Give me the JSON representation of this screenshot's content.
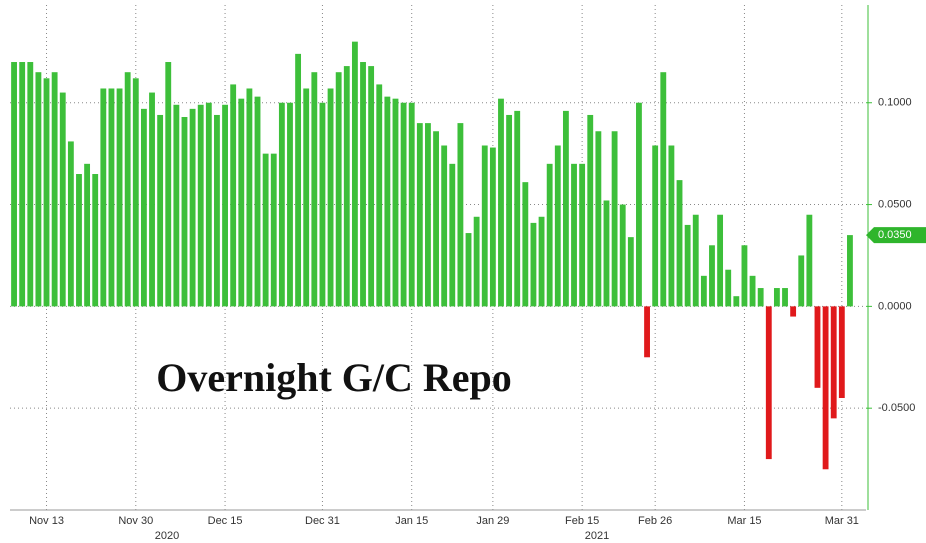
{
  "chart_data": {
    "type": "bar",
    "annotation": "Overnight G/C Repo",
    "categories": [
      null,
      null,
      null,
      null,
      "Nov 13",
      null,
      null,
      null,
      null,
      null,
      null,
      null,
      null,
      null,
      null,
      "Nov 30",
      null,
      null,
      null,
      null,
      null,
      null,
      null,
      null,
      null,
      null,
      "Dec 15",
      null,
      null,
      null,
      null,
      null,
      null,
      null,
      null,
      null,
      null,
      null,
      "Dec 31",
      null,
      null,
      null,
      null,
      null,
      null,
      null,
      null,
      null,
      null,
      "Jan 15",
      null,
      null,
      null,
      null,
      null,
      null,
      null,
      null,
      null,
      "Jan 29",
      null,
      null,
      null,
      null,
      null,
      null,
      null,
      null,
      null,
      null,
      "Feb 15",
      null,
      null,
      null,
      null,
      null,
      null,
      null,
      null,
      "Feb 26",
      null,
      null,
      null,
      null,
      null,
      null,
      null,
      null,
      null,
      null,
      "Mar 15",
      null,
      null,
      null,
      null,
      null,
      null,
      null,
      null,
      null,
      null,
      null,
      "Mar 31",
      null
    ],
    "values": [
      0.12,
      0.12,
      0.12,
      0.115,
      0.112,
      0.115,
      0.105,
      0.081,
      0.065,
      0.07,
      0.065,
      0.107,
      0.107,
      0.107,
      0.115,
      0.112,
      0.097,
      0.105,
      0.094,
      0.12,
      0.099,
      0.093,
      0.097,
      0.099,
      0.1,
      0.094,
      0.099,
      0.109,
      0.102,
      0.107,
      0.103,
      0.075,
      0.075,
      0.1,
      0.1,
      0.124,
      0.107,
      0.115,
      0.1,
      0.107,
      0.115,
      0.118,
      0.13,
      0.12,
      0.118,
      0.109,
      0.103,
      0.102,
      0.1,
      0.1,
      0.09,
      0.09,
      0.086,
      0.079,
      0.07,
      0.09,
      0.036,
      0.044,
      0.079,
      0.078,
      0.102,
      0.094,
      0.096,
      0.061,
      0.041,
      0.044,
      0.07,
      0.079,
      0.096,
      0.07,
      0.07,
      0.094,
      0.086,
      0.052,
      0.086,
      0.05,
      0.034,
      0.1,
      -0.025,
      0.079,
      0.115,
      0.079,
      0.062,
      0.04,
      0.045,
      0.015,
      0.03,
      0.045,
      0.018,
      0.005,
      0.03,
      0.015,
      0.009,
      -0.075,
      0.009,
      0.009,
      -0.005,
      0.025,
      0.045,
      -0.04,
      -0.08,
      -0.055,
      -0.045,
      0.035
    ],
    "color_positive": "#3dbf3a",
    "color_negative": "#e0191b",
    "ylim": [
      -0.1,
      0.148
    ],
    "yticks": [
      {
        "value": -0.05,
        "label": "-0.0500"
      },
      {
        "value": 0,
        "label": "0.0000"
      },
      {
        "value": 0.05,
        "label": "0.0500"
      },
      {
        "value": 0.1,
        "label": "0.1000"
      }
    ],
    "last_value_label": {
      "value": 0.035,
      "label": "0.0350"
    },
    "year_labels": [
      "2020",
      "2021"
    ],
    "grid": true
  }
}
